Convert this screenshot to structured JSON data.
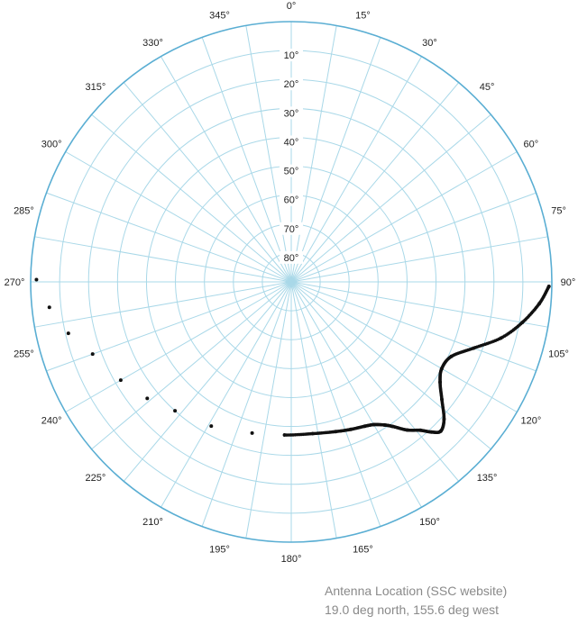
{
  "chart_data": {
    "type": "scatter",
    "projection": "polar",
    "angular_axis": {
      "direction": "clockwise",
      "zero_at": "top",
      "unit": "deg",
      "tick_labels": [
        "0°",
        "15°",
        "30°",
        "45°",
        "60°",
        "75°",
        "90°",
        "105°",
        "120°",
        "135°",
        "150°",
        "165°",
        "180°",
        "195°",
        "210°",
        "225°",
        "240°",
        "255°",
        "270°",
        "285°",
        "300°",
        "315°",
        "330°",
        "345°"
      ]
    },
    "radial_axis": {
      "quantity": "elevation",
      "range": [
        90,
        0
      ],
      "center_value": 90,
      "tick_labels": [
        "10°",
        "20°",
        "30°",
        "40°",
        "50°",
        "60°",
        "70°",
        "80°"
      ]
    },
    "grid": true,
    "colors": {
      "grid": "#a9d8e8",
      "outer_circle": "#5aaed3",
      "points": "#111111"
    },
    "series": [
      {
        "points": [
          {
            "az": 270.5,
            "el": 2
          },
          {
            "az": 264,
            "el": 6
          },
          {
            "az": 257,
            "el": 11
          },
          {
            "az": 250,
            "el": 17
          },
          {
            "az": 240,
            "el": 22
          },
          {
            "az": 231,
            "el": 26
          },
          {
            "az": 222,
            "el": 30
          },
          {
            "az": 209,
            "el": 33
          },
          {
            "az": 194.5,
            "el": 36
          },
          {
            "az": 182.5,
            "el": 37
          },
          {
            "az": 172,
            "el": 37
          },
          {
            "az": 163.5,
            "el": 36
          },
          {
            "az": 158,
            "el": 35
          },
          {
            "az": 153,
            "el": 34
          },
          {
            "az": 150,
            "el": 33
          },
          {
            "az": 147,
            "el": 31
          },
          {
            "az": 145,
            "el": 29
          },
          {
            "az": 142,
            "el": 25
          },
          {
            "az": 139,
            "el": 22
          },
          {
            "az": 137,
            "el": 19
          },
          {
            "az": 135,
            "el": 17
          },
          {
            "az": 132,
            "el": 19
          },
          {
            "az": 128,
            "el": 24
          },
          {
            "az": 124,
            "el": 28
          },
          {
            "az": 120,
            "el": 30
          },
          {
            "az": 115,
            "el": 29
          },
          {
            "az": 110,
            "el": 23
          },
          {
            "az": 105,
            "el": 15
          },
          {
            "az": 100,
            "el": 9
          },
          {
            "az": 95,
            "el": 4
          },
          {
            "az": 91,
            "el": 1
          }
        ]
      }
    ]
  },
  "caption": {
    "line1": "Antenna Location (SSC website)",
    "line2": "19.0 deg north, 155.6 deg west"
  }
}
